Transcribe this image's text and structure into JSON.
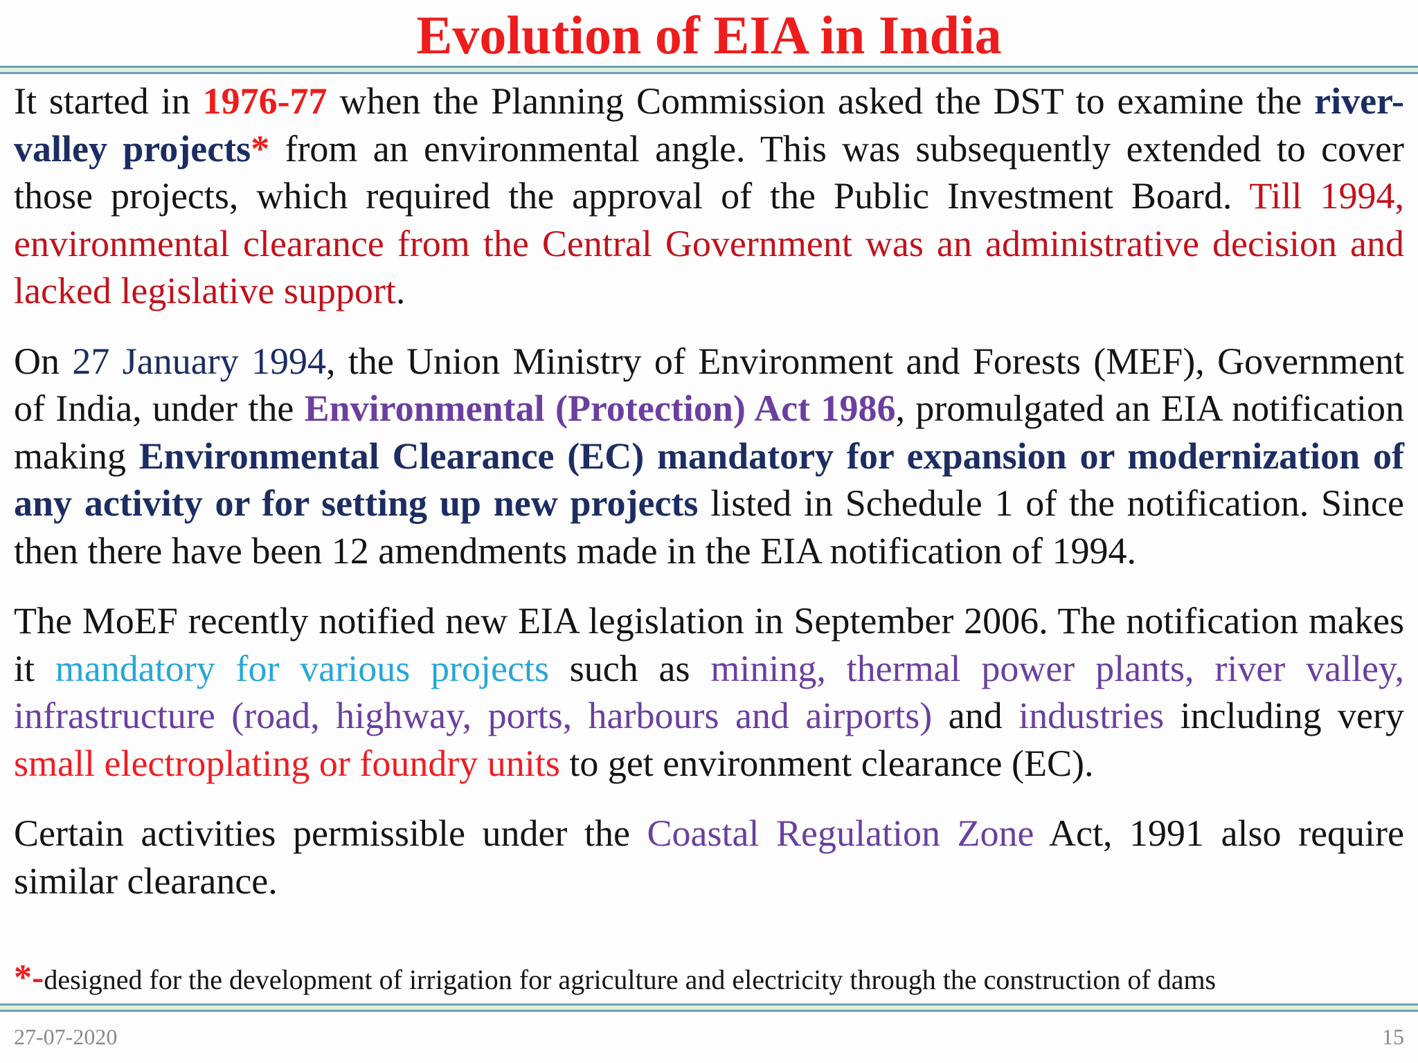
{
  "title": "Evolution of EIA in India",
  "para1": {
    "t1": "It started in ",
    "year": "1976-77",
    "t2": " when the Planning Commission asked the DST to examine the ",
    "projects": "river-valley projects",
    "asterisk": "*",
    "t3": " from an environmental angle. This was subsequently extended to cover those projects, which required the approval of the Public Investment Board. ",
    "red_text": "Till 1994, environmental clearance from the Central Government was an administrative decision and lacked legislative support",
    "end": "."
  },
  "para2": {
    "t1": "On ",
    "date": "27 January 1994",
    "t2": ", the Union Ministry of Environment and Forests (MEF), Government of India, under the ",
    "act": "Environmental (Protection) Act 1986",
    "t3": ", promulgated an EIA notification making ",
    "ec": "Environmental Clearance (EC) mandatory for expansion or modernization of any activity or for setting up new projects",
    "t4": " listed in Schedule 1 of the notification. Since then there have been 12 amendments made in the EIA notification of 1994."
  },
  "para3": {
    "t1": "The MoEF recently notified new EIA  legislation in September 2006. The notification makes it ",
    "mandatory": "mandatory for various projects",
    "t2": " such as ",
    "list": "mining, thermal power plants, river valley, infrastructure (road, highway, ports, harbours and airports)",
    "t3": " and ",
    "industries": "industries",
    "t4": " including very ",
    "small": "small electroplating or foundry units",
    "t5": " to get environment clearance (EC)."
  },
  "para4": {
    "t1": "Certain activities permissible under the ",
    "crz": "Coastal Regulation Zone",
    "t2": " Act, 1991 also require similar clearance."
  },
  "footnote": {
    "mark": "*-",
    "text": "designed for the development of irrigation for agriculture and electricity through the construction of dams"
  },
  "footer": {
    "date": "27-07-2020",
    "page": "15"
  }
}
